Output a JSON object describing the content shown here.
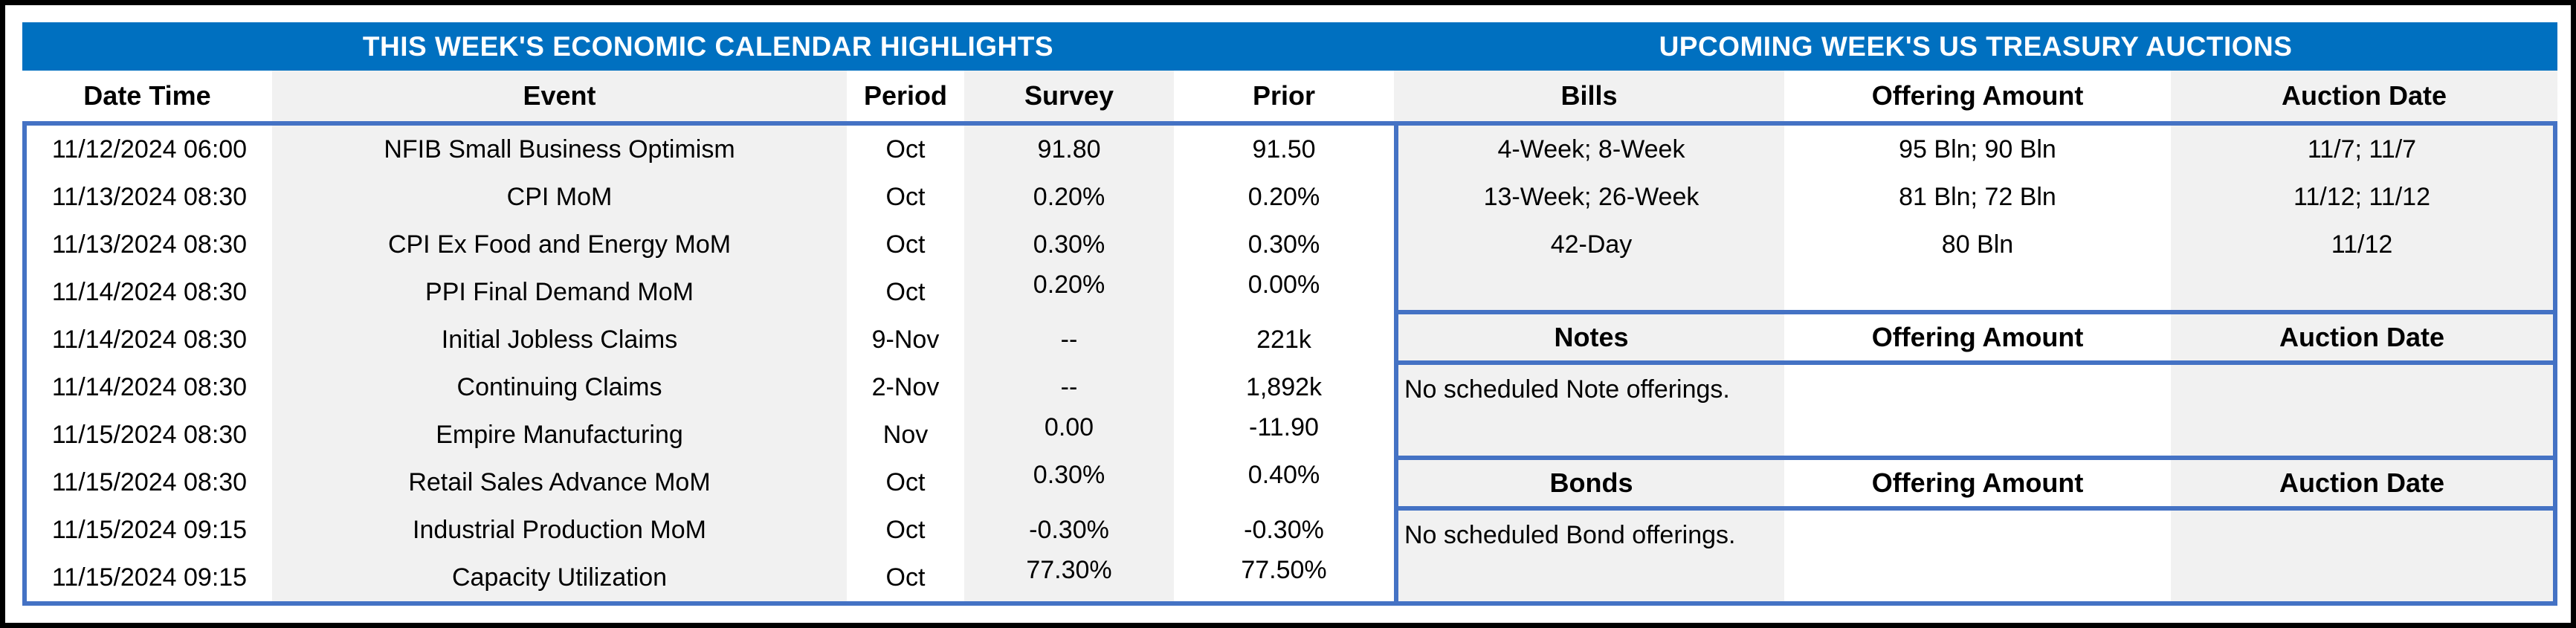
{
  "titles": {
    "calendar": "THIS WEEK'S ECONOMIC CALENDAR HIGHLIGHTS",
    "auctions": "UPCOMING WEEK'S US TREASURY AUCTIONS"
  },
  "colors": {
    "banner_blue": "#0070C0",
    "border_blue": "#4472C4",
    "stripe_gray": "#F1F1F1"
  },
  "calendar": {
    "headers": [
      "Date Time",
      "Event",
      "Period",
      "Survey",
      "Prior"
    ],
    "rows": [
      {
        "date_time": "11/12/2024 06:00",
        "event": "NFIB Small Business Optimism",
        "period": "Oct",
        "survey": "91.80",
        "prior": "91.50"
      },
      {
        "date_time": "11/13/2024 08:30",
        "event": "CPI MoM",
        "period": "Oct",
        "survey": "0.20%",
        "prior": "0.20%"
      },
      {
        "date_time": "11/13/2024 08:30",
        "event": "CPI Ex Food and Energy MoM",
        "period": "Oct",
        "survey": "0.30%",
        "prior": "0.30%"
      },
      {
        "date_time": "11/14/2024 08:30",
        "event": "PPI Final Demand MoM",
        "period": "Oct",
        "survey": "0.20%",
        "prior": "0.00%"
      },
      {
        "date_time": "11/14/2024 08:30",
        "event": "Initial Jobless Claims",
        "period": "9-Nov",
        "survey": "--",
        "prior": "221k"
      },
      {
        "date_time": "11/14/2024 08:30",
        "event": "Continuing Claims",
        "period": "2-Nov",
        "survey": "--",
        "prior": "1,892k"
      },
      {
        "date_time": "11/15/2024 08:30",
        "event": "Empire Manufacturing",
        "period": "Nov",
        "survey": "0.00",
        "prior": "-11.90"
      },
      {
        "date_time": "11/15/2024 08:30",
        "event": "Retail Sales Advance MoM",
        "period": "Oct",
        "survey": "0.30%",
        "prior": "0.40%"
      },
      {
        "date_time": "11/15/2024 09:15",
        "event": "Industrial Production MoM",
        "period": "Oct",
        "survey": "-0.30%",
        "prior": "-0.30%"
      },
      {
        "date_time": "11/15/2024 09:15",
        "event": "Capacity Utilization",
        "period": "Oct",
        "survey": "77.30%",
        "prior": "77.50%"
      }
    ]
  },
  "auctions": {
    "bills": {
      "headers": [
        "Bills",
        "Offering Amount",
        "Auction Date"
      ],
      "rows": [
        {
          "security": "4-Week; 8-Week",
          "offering_amount": "95 Bln; 90 Bln",
          "auction_date": "11/7; 11/7"
        },
        {
          "security": "13-Week; 26-Week",
          "offering_amount": "81 Bln; 72 Bln",
          "auction_date": "11/12; 11/12"
        },
        {
          "security": "42-Day",
          "offering_amount": "80 Bln",
          "auction_date": "11/12"
        }
      ]
    },
    "notes": {
      "headers": [
        "Notes",
        "Offering Amount",
        "Auction Date"
      ],
      "message": "No scheduled Note offerings."
    },
    "bonds": {
      "headers": [
        "Bonds",
        "Offering Amount",
        "Auction Date"
      ],
      "message": "No scheduled Bond offerings."
    }
  }
}
